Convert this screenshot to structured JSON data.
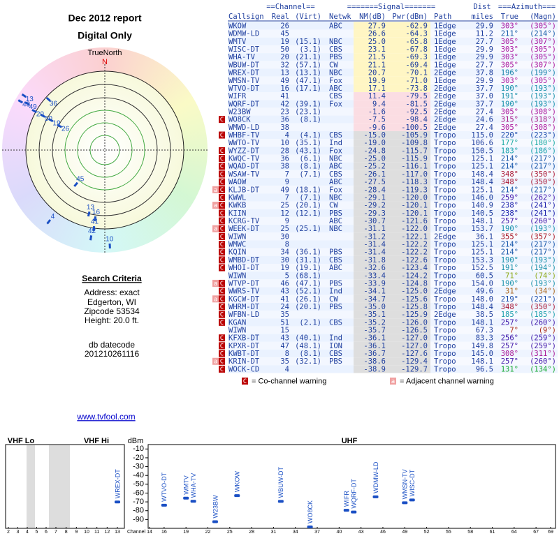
{
  "chart_data": [
    {
      "type": "polar",
      "title": "Dec 2012 report",
      "subtitle": "Digital Only",
      "north_label": "TrueNorth",
      "north_mark": "N",
      "labels": [
        "13",
        "36",
        "43",
        "49",
        "20",
        "50",
        "19",
        "26",
        "45",
        "4",
        "13",
        "16",
        "42",
        "41",
        "10"
      ],
      "azimuth": [
        304,
        312,
        300,
        301,
        299,
        299,
        299,
        298,
        220,
        218,
        194,
        188,
        189,
        188,
        177
      ],
      "values": [
        5.7,
        16,
        5.7,
        9,
        13.7,
        18.3,
        22.7,
        27.7,
        30.7,
        8.7,
        20.7,
        19,
        9.7,
        14.3,
        6.3
      ],
      "rlim": [
        49,
        0
      ],
      "color": "#1a4fc4"
    },
    {
      "type": "spectrum",
      "ylabel": "dBm",
      "xlabel": "Channel",
      "bands": [
        {
          "label": "VHF Lo",
          "xlim": [
            2,
            6
          ]
        },
        {
          "label": "VHF Hi",
          "xlim": [
            7,
            13
          ]
        },
        {
          "label": "UHF",
          "xlim": [
            14,
            69
          ]
        }
      ],
      "ylim": [
        -5,
        -100
      ],
      "yticks": [
        -10,
        -20,
        -30,
        -40,
        -50,
        -60,
        -70,
        -80,
        -90
      ],
      "xticks": [
        2,
        3,
        4,
        5,
        6,
        7,
        8,
        9,
        10,
        11,
        12,
        13,
        14,
        16,
        19,
        22,
        25,
        28,
        31,
        34,
        37,
        40,
        43,
        46,
        49,
        52,
        55,
        58,
        61,
        64,
        67,
        69
      ],
      "categories": [
        "WREX-DT",
        "WTVO-DT",
        "WMTV",
        "WHA-TV",
        "W23BW",
        "WKOW",
        "WBUW-DT",
        "WO8CK",
        "WIFR",
        "WQRF-DT",
        "WDMW-LD",
        "WMSN-TV",
        "WISC-DT"
      ],
      "x": [
        13,
        16,
        19,
        20,
        23,
        26,
        32,
        36,
        41,
        42,
        45,
        49,
        50
      ],
      "values": [
        -70.1,
        -73.8,
        -65.8,
        -69.3,
        -92.5,
        -62.9,
        -69.4,
        -98.4,
        -79.5,
        -81.5,
        -64.3,
        -71.0,
        -67.8
      ],
      "color": "#1a4fc4"
    }
  ],
  "table": {
    "group_headers": [
      "==Channel==",
      "=======Signal=======",
      "Dist",
      "===Azimuth==="
    ],
    "columns": [
      "Callsign",
      "Real",
      "(Virt)",
      "Netwk",
      "NM(dB)",
      "Pwr(dBm)",
      "Path",
      "miles",
      "True",
      "(Magn)"
    ],
    "rows": [
      {
        "warn": [],
        "cells": [
          "WKOW",
          "26",
          "",
          "ABC",
          "27.9",
          "-62.9",
          "1Edge",
          "29.9",
          "303°",
          "(305°)"
        ]
      },
      {
        "warn": [],
        "cells": [
          "WDMW-LD",
          "45",
          "",
          "",
          "26.6",
          "-64.3",
          "1Edge",
          "11.2",
          "211°",
          "(214°)"
        ]
      },
      {
        "warn": [],
        "cells": [
          "WMTV",
          "19",
          "(15.1)",
          "NBC",
          "25.0",
          "-65.8",
          "1Edge",
          "27.7",
          "305°",
          "(307°)"
        ]
      },
      {
        "warn": [],
        "cells": [
          "WISC-DT",
          "50",
          "(3.1)",
          "CBS",
          "23.1",
          "-67.8",
          "1Edge",
          "29.9",
          "303°",
          "(305°)"
        ]
      },
      {
        "warn": [],
        "cells": [
          "WHA-TV",
          "20",
          "(21.1)",
          "PBS",
          "21.5",
          "-69.3",
          "1Edge",
          "29.9",
          "303°",
          "(305°)"
        ]
      },
      {
        "warn": [],
        "cells": [
          "WBUW-DT",
          "32",
          "(57.1)",
          "CW",
          "21.1",
          "-69.4",
          "1Edge",
          "27.7",
          "305°",
          "(307°)"
        ]
      },
      {
        "warn": [],
        "cells": [
          "WREX-DT",
          "13",
          "(13.1)",
          "NBC",
          "20.7",
          "-70.1",
          "2Edge",
          "37.8",
          "196°",
          "(199°)"
        ]
      },
      {
        "warn": [],
        "cells": [
          "WMSN-TV",
          "49",
          "(47.1)",
          "Fox",
          "19.9",
          "-71.0",
          "1Edge",
          "29.9",
          "303°",
          "(305°)"
        ]
      },
      {
        "warn": [],
        "cells": [
          "WTVO-DT",
          "16",
          "(17.1)",
          "ABC",
          "17.1",
          "-73.8",
          "2Edge",
          "37.7",
          "190°",
          "(193°)"
        ]
      },
      {
        "warn": [],
        "cells": [
          "WIFR",
          "41",
          "",
          "CBS",
          "11.4",
          "-79.5",
          "2Edge",
          "37.0",
          "191°",
          "(193°)"
        ]
      },
      {
        "warn": [],
        "cells": [
          "WQRF-DT",
          "42",
          "(39.1)",
          "Fox",
          "9.4",
          "-81.5",
          "2Edge",
          "37.7",
          "190°",
          "(193°)"
        ]
      },
      {
        "warn": [],
        "cells": [
          "W23BW",
          "23",
          "(23.1)",
          "",
          "-1.6",
          "-92.5",
          "2Edge",
          "27.4",
          "305°",
          "(308°)"
        ]
      },
      {
        "warn": [
          "C"
        ],
        "cells": [
          "WO8CK",
          "36",
          "(8.1)",
          "",
          "-7.5",
          "-98.4",
          "2Edge",
          "24.6",
          "315°",
          "(318°)"
        ]
      },
      {
        "warn": [],
        "cells": [
          "WMWD-LD",
          "38",
          "",
          "",
          "-9.6",
          "-100.5",
          "2Edge",
          "27.4",
          "305°",
          "(308°)"
        ]
      },
      {
        "warn": [
          "C"
        ],
        "cells": [
          "WHBF-TV",
          "4",
          "(4.1)",
          "CBS",
          "-15.0",
          "-105.9",
          "Tropo",
          "115.0",
          "220°",
          "(223°)"
        ]
      },
      {
        "warn": [],
        "cells": [
          "WWTO-TV",
          "10",
          "(35.1)",
          "Ind",
          "-19.0",
          "-109.8",
          "Tropo",
          "106.6",
          "177°",
          "(180°)"
        ]
      },
      {
        "warn": [
          "C"
        ],
        "cells": [
          "WYZZ-DT",
          "28",
          "(43.1)",
          "Fox",
          "-24.8",
          "-115.7",
          "Tropo",
          "150.5",
          "183°",
          "(186°)"
        ]
      },
      {
        "warn": [
          "C"
        ],
        "cells": [
          "KWQC-TV",
          "36",
          "(6.1)",
          "NBC",
          "-25.0",
          "-115.9",
          "Tropo",
          "125.1",
          "214°",
          "(217°)"
        ]
      },
      {
        "warn": [
          "C"
        ],
        "cells": [
          "WQAD-DT",
          "38",
          "(8.1)",
          "ABC",
          "-25.2",
          "-116.1",
          "Tropo",
          "125.1",
          "214°",
          "(217°)"
        ]
      },
      {
        "warn": [
          "C"
        ],
        "cells": [
          "WSAW-TV",
          "7",
          "(7.1)",
          "CBS",
          "-26.1",
          "-117.0",
          "Tropo",
          "148.4",
          "348°",
          "(350°)"
        ]
      },
      {
        "warn": [
          "C"
        ],
        "cells": [
          "WAOW",
          "9",
          "",
          "ABC",
          "-27.5",
          "-118.3",
          "Tropo",
          "148.4",
          "348°",
          "(350°)"
        ]
      },
      {
        "warn": [
          "a",
          "C"
        ],
        "cells": [
          "KLJB-DT",
          "49",
          "(18.1)",
          "Fox",
          "-28.4",
          "-119.3",
          "Tropo",
          "125.1",
          "214°",
          "(217°)"
        ]
      },
      {
        "warn": [
          "C"
        ],
        "cells": [
          "KWWL",
          "7",
          "(7.1)",
          "NBC",
          "-29.1",
          "-120.0",
          "Tropo",
          "146.0",
          "259°",
          "(262°)"
        ]
      },
      {
        "warn": [
          "a",
          "C"
        ],
        "cells": [
          "KWKB",
          "25",
          "(20.1)",
          "CW",
          "-29.2",
          "-120.1",
          "Tropo",
          "140.9",
          "238°",
          "(241°)"
        ]
      },
      {
        "warn": [
          "C"
        ],
        "cells": [
          "KIIN",
          "12",
          "(12.1)",
          "PBS",
          "-29.3",
          "-120.1",
          "Tropo",
          "140.5",
          "238°",
          "(241°)"
        ]
      },
      {
        "warn": [
          "C"
        ],
        "cells": [
          "KCRG-TV",
          "9",
          "",
          "ABC",
          "-30.7",
          "-121.6",
          "Tropo",
          "148.1",
          "257°",
          "(260°)"
        ]
      },
      {
        "warn": [
          "a",
          "C"
        ],
        "cells": [
          "WEEK-DT",
          "25",
          "(25.1)",
          "NBC",
          "-31.1",
          "-122.0",
          "Tropo",
          "153.7",
          "190°",
          "(193°)"
        ]
      },
      {
        "warn": [
          "C"
        ],
        "cells": [
          "WIWN",
          "30",
          "",
          "",
          "-31.2",
          "-122.1",
          "2Edge",
          "36.1",
          "355°",
          "(357°)"
        ]
      },
      {
        "warn": [
          "C"
        ],
        "cells": [
          "WMWC",
          "8",
          "",
          "",
          "-31.4",
          "-122.2",
          "Tropo",
          "125.1",
          "214°",
          "(217°)"
        ]
      },
      {
        "warn": [
          "C"
        ],
        "cells": [
          "KQIN",
          "34",
          "(36.1)",
          "PBS",
          "-31.4",
          "-122.2",
          "Tropo",
          "125.1",
          "214°",
          "(217°)"
        ]
      },
      {
        "warn": [
          "C"
        ],
        "cells": [
          "WMBD-DT",
          "30",
          "(31.1)",
          "CBS",
          "-31.8",
          "-122.6",
          "Tropo",
          "153.3",
          "190°",
          "(193°)"
        ]
      },
      {
        "warn": [
          "C"
        ],
        "cells": [
          "WHOI-DT",
          "19",
          "(19.1)",
          "ABC",
          "-32.6",
          "-123.4",
          "Tropo",
          "152.5",
          "191°",
          "(194°)"
        ]
      },
      {
        "warn": [],
        "cells": [
          "WIWN",
          "5",
          "(68.1)",
          "",
          "-33.4",
          "-124.2",
          "Tropo",
          "60.5",
          "71°",
          "(74°)"
        ]
      },
      {
        "warn": [
          "a",
          "C"
        ],
        "cells": [
          "WTVP-DT",
          "46",
          "(47.1)",
          "PBS",
          "-33.9",
          "-124.8",
          "Tropo",
          "154.0",
          "190°",
          "(193°)"
        ]
      },
      {
        "warn": [
          "C"
        ],
        "cells": [
          "WWRS-TV",
          "43",
          "(52.1)",
          "Ind",
          "-34.1",
          "-125.0",
          "2Edge",
          "49.6",
          "31°",
          "(34°)"
        ]
      },
      {
        "warn": [
          "a",
          "C"
        ],
        "cells": [
          "KGCW-DT",
          "41",
          "(26.1)",
          "CW",
          "-34.7",
          "-125.6",
          "Tropo",
          "148.0",
          "219°",
          "(221°)"
        ]
      },
      {
        "warn": [
          "C"
        ],
        "cells": [
          "WHRM-DT",
          "24",
          "(20.1)",
          "PBS",
          "-35.0",
          "-125.8",
          "Tropo",
          "148.4",
          "348°",
          "(350°)"
        ]
      },
      {
        "warn": [
          "C"
        ],
        "cells": [
          "WFBN-LD",
          "35",
          "",
          "",
          "-35.1",
          "-125.9",
          "2Edge",
          "38.5",
          "185°",
          "(185°)"
        ]
      },
      {
        "warn": [
          "C"
        ],
        "cells": [
          "KGAN",
          "51",
          "(2.1)",
          "CBS",
          "-35.2",
          "-126.0",
          "Tropo",
          "148.1",
          "257°",
          "(260°)"
        ]
      },
      {
        "warn": [],
        "cells": [
          "WIWN",
          "15",
          "",
          "",
          "-35.7",
          "-126.5",
          "Tropo",
          "67.3",
          "7°",
          "(9°)"
        ]
      },
      {
        "warn": [
          "C"
        ],
        "cells": [
          "KFXB-DT",
          "43",
          "(40.1)",
          "Ind",
          "-36.1",
          "-127.0",
          "Tropo",
          "83.3",
          "256°",
          "(259°)"
        ]
      },
      {
        "warn": [
          "C"
        ],
        "cells": [
          "KPXR-DT",
          "47",
          "(48.1)",
          "ION",
          "-36.1",
          "-127.0",
          "Tropo",
          "149.8",
          "257°",
          "(259°)"
        ]
      },
      {
        "warn": [
          "C"
        ],
        "cells": [
          "KWBT-DT",
          "8",
          "(8.1)",
          "CBS",
          "-36.7",
          "-127.6",
          "Tropo",
          "145.0",
          "308°",
          "(311°)"
        ]
      },
      {
        "warn": [
          "a",
          "C"
        ],
        "cells": [
          "KRIN-DT",
          "35",
          "(32.1)",
          "PBS",
          "-38.6",
          "-129.4",
          "Tropo",
          "148.1",
          "257°",
          "(260°)"
        ]
      },
      {
        "warn": [
          "C"
        ],
        "cells": [
          "WOCK-CD",
          "4",
          "",
          "",
          "-38.9",
          "-129.7",
          "Tropo",
          "96.5",
          "131°",
          "(134°)"
        ]
      }
    ],
    "legend": [
      {
        "symbol": "C",
        "text": "= Co-channel warning"
      },
      {
        "symbol": "a",
        "text": "= Adjacent channel warning"
      }
    ]
  },
  "search_criteria": {
    "heading": "Search Criteria",
    "lines": [
      "Address: exact",
      "Edgerton, WI",
      "Zipcode 53534",
      "Height: 20.0 ft."
    ]
  },
  "db_datecode": {
    "label": "db datecode",
    "value": "201210261116"
  },
  "link": "www.tvfool.com"
}
